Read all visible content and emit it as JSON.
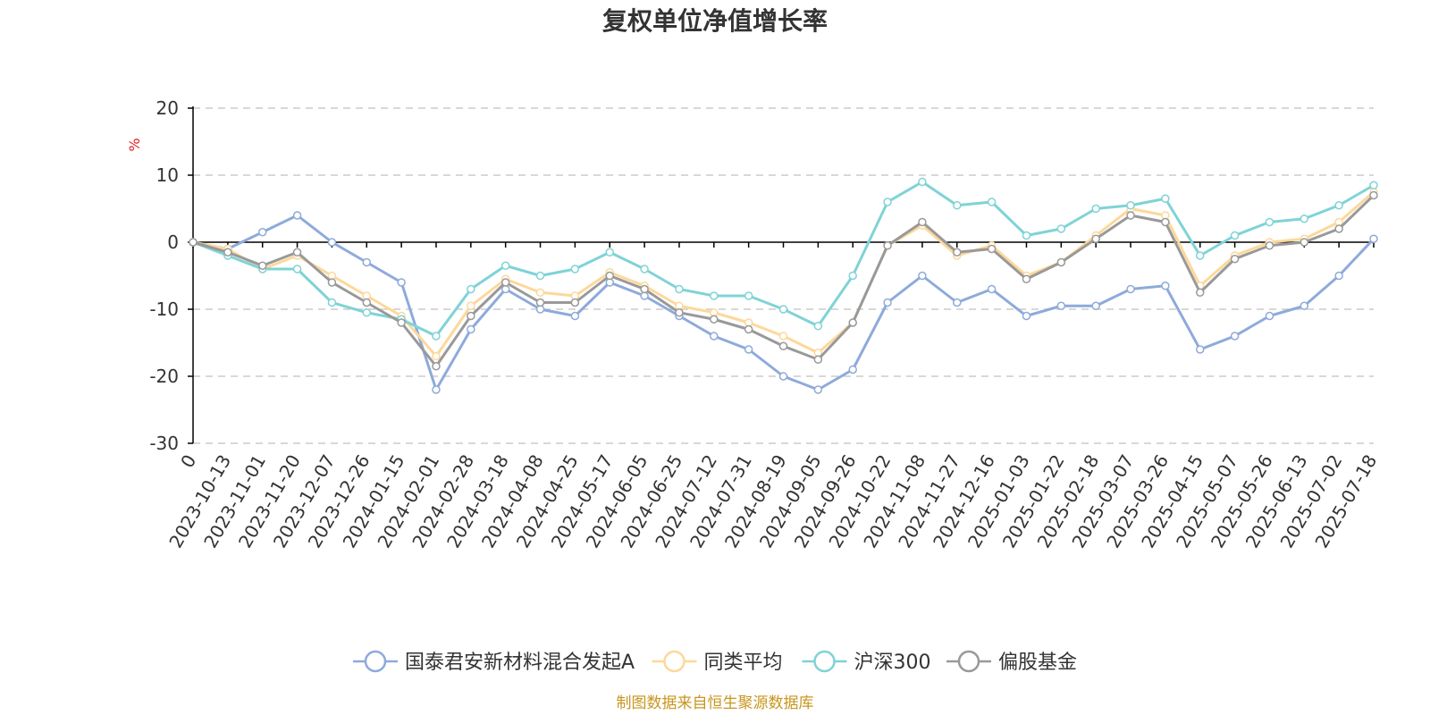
{
  "colors": {
    "fund": "#8eaadb",
    "peer": "#fdd89a",
    "csi300": "#7fd3d6",
    "equity": "#999999",
    "unit": "#e0201f",
    "source": "#c8961e",
    "grid": "#cccccc",
    "axis": "#000000"
  },
  "chart_data": {
    "type": "line",
    "title": "复权单位净值增长率",
    "ylabel": "%",
    "ylim": [
      -30,
      20
    ],
    "yticks": [
      "20",
      "10",
      "0",
      "-10",
      "-20",
      "-30"
    ],
    "grid": true,
    "legend_position": "bottom-center",
    "source_note": "制图数据来自恒生聚源数据库",
    "categories": [
      "0",
      "2023-10-13",
      "2023-11-01",
      "2023-11-20",
      "2023-12-07",
      "2023-12-26",
      "2024-01-15",
      "2024-02-01",
      "2024-02-28",
      "2024-03-18",
      "2024-04-08",
      "2024-04-25",
      "2024-05-17",
      "2024-06-05",
      "2024-06-25",
      "2024-07-12",
      "2024-07-31",
      "2024-08-19",
      "2024-09-05",
      "2024-09-26",
      "2024-10-22",
      "2024-11-08",
      "2024-11-27",
      "2024-12-16",
      "2025-01-03",
      "2025-01-22",
      "2025-02-18",
      "2025-03-07",
      "2025-03-26",
      "2025-04-15",
      "2025-05-07",
      "2025-05-26",
      "2025-06-13",
      "2025-07-02",
      "2025-07-18"
    ],
    "series": [
      {
        "name": "国泰君安新材料混合发起A",
        "color": "#8eaadb",
        "values": [
          0,
          -1,
          1.5,
          4,
          0,
          -3,
          -6,
          -22,
          -13,
          -7,
          -10,
          -11,
          -6,
          -8,
          -11,
          -14,
          -16,
          -20,
          -22,
          -19,
          -9,
          -5,
          -9,
          -7,
          -11,
          -9.5,
          -9.5,
          -7,
          -6.5,
          -16,
          -14,
          -11,
          -9.5,
          -5,
          0.5
        ]
      },
      {
        "name": "同类平均",
        "color": "#fdd89a",
        "values": [
          0,
          -1,
          -4,
          -2,
          -5,
          -8,
          -11,
          -17,
          -9.5,
          -5.5,
          -7.5,
          -8,
          -4.5,
          -6.5,
          -9.5,
          -10.5,
          -12,
          -14,
          -16.5,
          -12,
          -0.5,
          2.5,
          -2,
          -0.5,
          -5,
          -3,
          1,
          5,
          4,
          -6.5,
          -2,
          0,
          0.5,
          3,
          7.5
        ]
      },
      {
        "name": "沪深300",
        "color": "#7fd3d6",
        "values": [
          0,
          -2,
          -4,
          -4,
          -9,
          -10.5,
          -11.5,
          -14,
          -7,
          -3.5,
          -5,
          -4,
          -1.5,
          -4,
          -7,
          -8,
          -8,
          -10,
          -12.5,
          -5,
          6,
          9,
          5.5,
          6,
          1,
          2,
          5,
          5.5,
          6.5,
          -2,
          1,
          3,
          3.5,
          5.5,
          8.5
        ]
      },
      {
        "name": "偏股基金",
        "color": "#999999",
        "values": [
          0,
          -1.5,
          -3.5,
          -1.5,
          -6,
          -9,
          -12,
          -18.5,
          -11,
          -6,
          -9,
          -9,
          -5,
          -7,
          -10.5,
          -11.5,
          -13,
          -15.5,
          -17.5,
          -12,
          -0.5,
          3,
          -1.5,
          -1,
          -5.5,
          -3,
          0.5,
          4,
          3,
          -7.5,
          -2.5,
          -0.5,
          0,
          2,
          7
        ]
      }
    ]
  }
}
